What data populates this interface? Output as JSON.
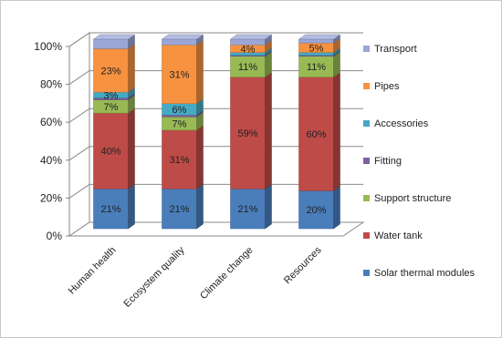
{
  "chart_data": {
    "type": "bar",
    "stacked": true,
    "three_d": true,
    "categories": [
      "Human health",
      "Ecosystem quality",
      "Climate change",
      "Resources"
    ],
    "series": [
      {
        "name": "Solar thermal modules",
        "color": "#4a7ebb",
        "values": [
          21,
          21,
          21,
          20
        ],
        "labels": [
          "21%",
          "21%",
          "21%",
          "20%"
        ]
      },
      {
        "name": "Water tank",
        "color": "#be4b48",
        "values": [
          40,
          31,
          59,
          60
        ],
        "labels": [
          "40%",
          "31%",
          "59%",
          "60%"
        ]
      },
      {
        "name": "Support structure",
        "color": "#98b954",
        "values": [
          7,
          7,
          11,
          11
        ],
        "labels": [
          "7%",
          "7%",
          "11%",
          "11%"
        ]
      },
      {
        "name": "Fitting",
        "color": "#7d60a0",
        "values": [
          1,
          1,
          0.5,
          0.5
        ],
        "labels": [
          "",
          "",
          "",
          ""
        ]
      },
      {
        "name": "Accessories",
        "color": "#46aac5",
        "values": [
          3,
          6,
          1.5,
          1.5
        ],
        "labels": [
          "3%",
          "6%",
          "",
          ""
        ]
      },
      {
        "name": "Pipes",
        "color": "#f69240",
        "values": [
          23,
          31,
          4,
          5
        ],
        "labels": [
          "23%",
          "31%",
          "4%",
          "5%"
        ]
      },
      {
        "name": "Transport",
        "color": "#9aa6d6",
        "values": [
          5,
          3,
          3,
          2
        ],
        "labels": [
          "",
          "",
          "",
          ""
        ]
      }
    ],
    "yticks": [
      "0%",
      "20%",
      "40%",
      "60%",
      "80%",
      "100%"
    ],
    "ylim": [
      0,
      100
    ],
    "grid": true,
    "legend_position": "right",
    "title": "",
    "xlabel": "",
    "ylabel": ""
  }
}
